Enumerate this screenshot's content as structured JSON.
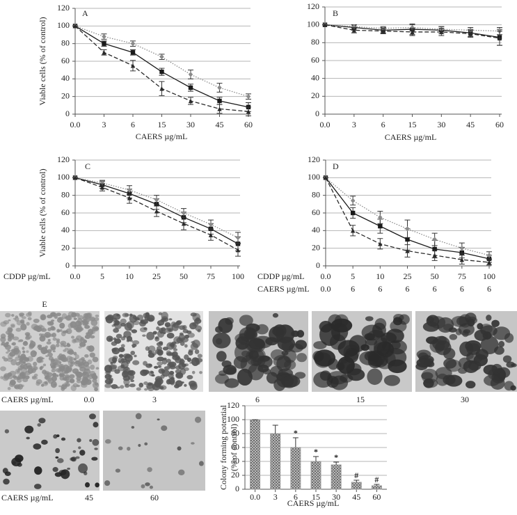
{
  "chart_data": [
    {
      "type": "line",
      "label": "A",
      "ylabel": "Viable cells (% of control)",
      "xlabel": "CAERS µg/mL",
      "categories": [
        "0.0",
        "3",
        "6",
        "15",
        "30",
        "45",
        "60"
      ],
      "ylim": [
        0,
        120
      ],
      "yticks": [
        0,
        20,
        40,
        60,
        80,
        100,
        120
      ],
      "grid": true,
      "series": [
        {
          "color": "#1a1a1a",
          "dash": "solid",
          "marker": "square",
          "values": [
            100,
            80,
            70,
            48,
            30,
            15,
            8
          ],
          "errors": [
            0,
            3,
            3,
            4,
            4,
            4,
            5
          ]
        },
        {
          "color": "#8a8a8a",
          "dash": "dotted",
          "marker": "diamond",
          "values": [
            100,
            88,
            80,
            65,
            45,
            30,
            20
          ],
          "errors": [
            0,
            3,
            3,
            3,
            5,
            5,
            3
          ]
        },
        {
          "color": "#2a2a2a",
          "dash": "dashed",
          "marker": "triangle",
          "values": [
            100,
            70,
            55,
            29,
            15,
            6,
            3
          ],
          "errors": [
            0,
            3,
            6,
            8,
            4,
            5,
            5
          ]
        }
      ]
    },
    {
      "type": "line",
      "label": "B",
      "xlabel": "CAERS µg/mL",
      "categories": [
        "0.0",
        "3",
        "6",
        "15",
        "30",
        "45",
        "60"
      ],
      "ylim": [
        0,
        120
      ],
      "yticks": [
        0,
        20,
        40,
        60,
        80,
        100,
        120
      ],
      "grid": true,
      "series": [
        {
          "color": "#1a1a1a",
          "dash": "solid",
          "marker": "square",
          "values": [
            100,
            97,
            94,
            95,
            94,
            91,
            86
          ],
          "errors": [
            0,
            3,
            3,
            6,
            4,
            4,
            9
          ]
        },
        {
          "color": "#8a8a8a",
          "dash": "dotted",
          "marker": "diamond",
          "values": [
            100,
            98,
            96,
            97,
            95,
            94,
            93
          ],
          "errors": [
            0,
            2,
            2,
            3,
            3,
            3,
            4
          ]
        },
        {
          "color": "#2a2a2a",
          "dash": "dashed",
          "marker": "triangle",
          "values": [
            100,
            94,
            93,
            92,
            92,
            90,
            85
          ],
          "errors": [
            0,
            3,
            3,
            4,
            4,
            4,
            8
          ]
        }
      ]
    },
    {
      "type": "line",
      "label": "C",
      "ylabel": "Viable cells (% of control)",
      "xlabel": "CDDP µg/mL",
      "categories": [
        "0.0",
        "5",
        "10",
        "25",
        "50",
        "75",
        "100"
      ],
      "ylim": [
        0,
        120
      ],
      "yticks": [
        0,
        20,
        40,
        60,
        80,
        100,
        120
      ],
      "grid": true,
      "series": [
        {
          "color": "#1a1a1a",
          "dash": "solid",
          "marker": "square",
          "values": [
            100,
            92,
            82,
            70,
            55,
            42,
            25
          ],
          "errors": [
            0,
            4,
            5,
            6,
            6,
            6,
            8
          ]
        },
        {
          "color": "#8a8a8a",
          "dash": "dotted",
          "marker": "diamond",
          "values": [
            100,
            94,
            86,
            75,
            60,
            47,
            32
          ],
          "errors": [
            0,
            3,
            5,
            5,
            5,
            5,
            6
          ]
        },
        {
          "color": "#2a2a2a",
          "dash": "dashed",
          "marker": "triangle",
          "values": [
            100,
            89,
            77,
            62,
            48,
            35,
            18
          ],
          "errors": [
            0,
            4,
            6,
            6,
            7,
            6,
            7
          ]
        }
      ]
    },
    {
      "type": "line",
      "label": "D",
      "xlabel": "CDDP µg/mL",
      "xlabel2": "CAERS µg/mL",
      "categories": [
        "0.0",
        "5",
        "10",
        "25",
        "50",
        "75",
        "100"
      ],
      "categories2": [
        "0.0",
        "6",
        "6",
        "6",
        "6",
        "6",
        "6"
      ],
      "ylim": [
        0,
        120
      ],
      "yticks": [
        0,
        20,
        40,
        60,
        80,
        100,
        120
      ],
      "grid": true,
      "series": [
        {
          "color": "#1a1a1a",
          "dash": "solid",
          "marker": "square",
          "values": [
            100,
            60,
            45,
            30,
            19,
            15,
            8
          ],
          "errors": [
            0,
            6,
            8,
            12,
            10,
            6,
            4
          ]
        },
        {
          "color": "#8a8a8a",
          "dash": "dotted",
          "marker": "diamond",
          "values": [
            100,
            74,
            55,
            42,
            30,
            20,
            12
          ],
          "errors": [
            0,
            5,
            7,
            10,
            7,
            6,
            4
          ]
        },
        {
          "color": "#2a2a2a",
          "dash": "dashed",
          "marker": "triangle",
          "values": [
            100,
            40,
            25,
            17,
            12,
            7,
            4
          ],
          "errors": [
            0,
            6,
            6,
            7,
            6,
            5,
            3
          ]
        }
      ]
    },
    {
      "type": "bar",
      "ylabel": [
        "Colony forming potential",
        "(% of control)"
      ],
      "xlabel": "CAERS µg/mL",
      "categories": [
        "0.0",
        "3",
        "6",
        "15",
        "30",
        "45",
        "60"
      ],
      "values": [
        100,
        80,
        60,
        40,
        35,
        10,
        5
      ],
      "errors": [
        0,
        12,
        14,
        7,
        4,
        3,
        2
      ],
      "markers": [
        null,
        null,
        "*",
        "*",
        "*",
        "#",
        "#"
      ],
      "color": "#9a9a9a",
      "ylim": [
        0,
        120
      ],
      "yticks": [
        0,
        20,
        40,
        60,
        80,
        100,
        120
      ],
      "grid": true
    }
  ],
  "micrographs": {
    "label": "E",
    "row_labels": [
      "CAERS µg/mL",
      "CAERS µg/mL"
    ],
    "items": [
      "0.0",
      "3",
      "6",
      "15",
      "30",
      "45",
      "60"
    ]
  }
}
